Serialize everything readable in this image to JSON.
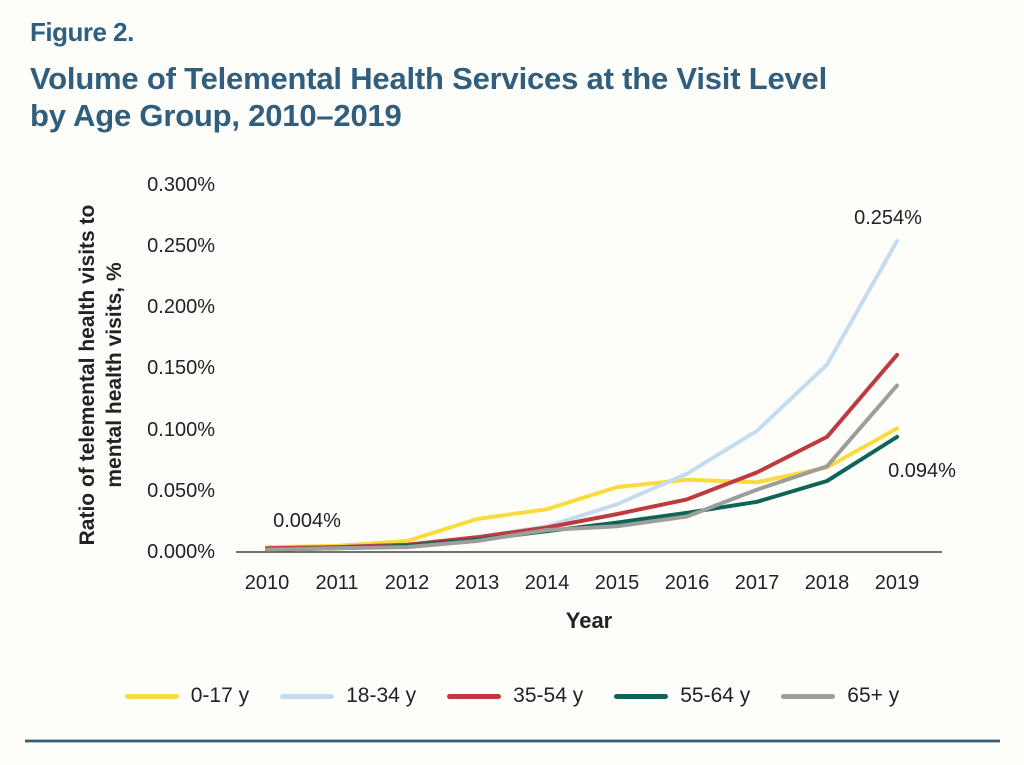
{
  "header": {
    "figure_label": "Figure 2.",
    "title_lines": [
      "Volume of Telemental Health Services at the Visit Level",
      "by Age Group, 2010–2019"
    ]
  },
  "chart_data": {
    "type": "line",
    "title": "Volume of Telemental Health Services at the Visit Level by Age Group, 2010–2019",
    "x": [
      2010,
      2011,
      2012,
      2013,
      2014,
      2015,
      2016,
      2017,
      2018,
      2019
    ],
    "xlabel": "Year",
    "ylabel": "Ratio of telemental health visits to mental health visits, %",
    "ylabel_lines": [
      "Ratio of telemental health visits to",
      "mental health visits, %"
    ],
    "ylim": [
      0,
      0.3
    ],
    "ytick_values": [
      0.0,
      0.05,
      0.1,
      0.15,
      0.2,
      0.25,
      0.3
    ],
    "ytick_labels": [
      "0.000%",
      "0.050%",
      "0.100%",
      "0.150%",
      "0.200%",
      "0.250%",
      "0.300%"
    ],
    "grid": false,
    "legend_position": "bottom",
    "series": [
      {
        "name": "0-17 y",
        "color": "#F9DC3C",
        "values": [
          0.004,
          0.005,
          0.009,
          0.027,
          0.035,
          0.053,
          0.059,
          0.057,
          0.069,
          0.101
        ]
      },
      {
        "name": "18-34 y",
        "color": "#C5DBEF",
        "values": [
          0.003,
          0.004,
          0.006,
          0.012,
          0.021,
          0.039,
          0.064,
          0.099,
          0.153,
          0.254
        ]
      },
      {
        "name": "35-54 y",
        "color": "#BE3A40",
        "values": [
          0.003,
          0.004,
          0.006,
          0.012,
          0.02,
          0.031,
          0.043,
          0.065,
          0.094,
          0.161
        ]
      },
      {
        "name": "55-64 y",
        "color": "#0E6557",
        "values": [
          0.002,
          0.003,
          0.005,
          0.01,
          0.017,
          0.024,
          0.032,
          0.041,
          0.058,
          0.094
        ]
      },
      {
        "name": "65+ y",
        "color": "#9D9D9B",
        "values": [
          0.002,
          0.003,
          0.004,
          0.009,
          0.018,
          0.021,
          0.029,
          0.051,
          0.07,
          0.136
        ]
      }
    ],
    "annotations": {
      "start": "0.004%",
      "peak": "0.254%",
      "end": "0.094%"
    },
    "axis_color": "#414042"
  }
}
